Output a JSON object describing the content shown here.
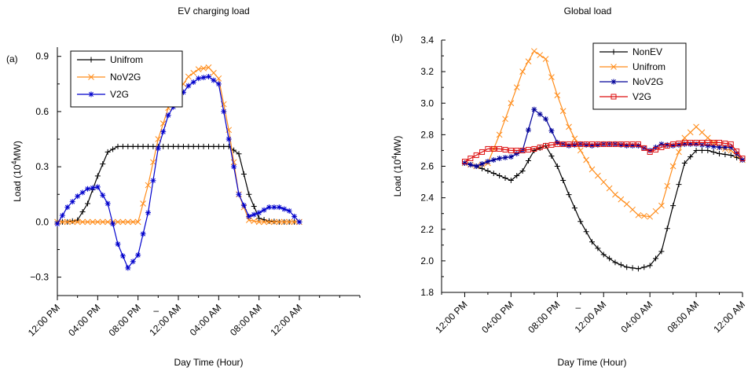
{
  "chart_data": [
    {
      "type": "line",
      "panel_label": "(a)",
      "title": "EV charging load",
      "xlabel": "Day Time (Hour)",
      "ylabel": "Load (10^4MW)",
      "ylabel_parts": [
        "Load (10",
        "4",
        "MW)"
      ],
      "ylim": [
        -0.4,
        0.95
      ],
      "yticks": [
        -0.3,
        0.0,
        0.3,
        0.6,
        0.9
      ],
      "ytick_labels": [
        "−0.3",
        "0.0",
        "0.3",
        "0.6",
        "0.9"
      ],
      "xlim": [
        12,
        42
      ],
      "xticks": [
        12,
        16,
        20,
        24,
        28,
        32,
        36
      ],
      "xtick_labels": [
        "12:00 PM",
        "04:00 PM",
        "08:00 PM",
        "12:00 AM",
        "04:00 AM",
        "08:00 AM",
        "12:00 AM"
      ],
      "stray_label": "–",
      "legend_position": "top-left",
      "series": [
        {
          "name": "Unifrom",
          "color": "#000000",
          "marker": "plus",
          "x": [
            12,
            13,
            14,
            15,
            16,
            17,
            18,
            19,
            20,
            21,
            22,
            23,
            24,
            25,
            26,
            27,
            28,
            29,
            30,
            31,
            32,
            33,
            34,
            35,
            36
          ],
          "y": [
            0,
            0,
            0.01,
            0.1,
            0.25,
            0.38,
            0.41,
            0.41,
            0.41,
            0.41,
            0.41,
            0.41,
            0.41,
            0.41,
            0.41,
            0.41,
            0.41,
            0.41,
            0.37,
            0.15,
            0.02,
            0.005,
            0,
            0,
            0
          ]
        },
        {
          "name": "NoV2G",
          "color": "#ff8c1a",
          "marker": "x",
          "x": [
            12,
            13,
            14,
            15,
            16,
            17,
            18,
            19,
            20,
            21,
            22,
            23,
            24,
            25,
            26,
            27,
            28,
            29,
            30,
            31,
            32,
            33,
            34,
            35,
            36
          ],
          "y": [
            0,
            0,
            0,
            0,
            0,
            0,
            0,
            0,
            0,
            0.2,
            0.45,
            0.62,
            0.71,
            0.79,
            0.83,
            0.84,
            0.78,
            0.5,
            0.15,
            0.01,
            0,
            0,
            0,
            0,
            0
          ]
        },
        {
          "name": "V2G",
          "color": "#0000cc",
          "marker": "star",
          "x": [
            12,
            13,
            14,
            15,
            16,
            17,
            18,
            19,
            20,
            21,
            22,
            23,
            24,
            25,
            26,
            27,
            28,
            29,
            30,
            31,
            32,
            33,
            34,
            35,
            36
          ],
          "y": [
            -0.01,
            0.08,
            0.14,
            0.18,
            0.19,
            0.1,
            -0.12,
            -0.25,
            -0.18,
            0.05,
            0.4,
            0.58,
            0.67,
            0.74,
            0.78,
            0.79,
            0.75,
            0.45,
            0.15,
            0.03,
            0.05,
            0.08,
            0.08,
            0.06,
            0
          ]
        }
      ]
    },
    {
      "type": "line",
      "panel_label": "(b)",
      "title": "Global load",
      "xlabel": "Day Time (Hour)",
      "ylabel": "Load (10^4MW)",
      "ylabel_parts": [
        "Load (10",
        "4",
        "MW)"
      ],
      "ylim": [
        1.8,
        3.4
      ],
      "yticks": [
        1.8,
        2.0,
        2.2,
        2.4,
        2.6,
        2.8,
        3.0,
        3.2,
        3.4
      ],
      "ytick_labels": [
        "1.8",
        "2.0",
        "2.2",
        "2.4",
        "2.6",
        "2.8",
        "3.0",
        "3.2",
        "3.4"
      ],
      "xlim": [
        10,
        36
      ],
      "xticks": [
        12,
        16,
        20,
        24,
        28,
        32,
        36
      ],
      "xtick_labels": [
        "12:00 PM",
        "04:00 PM",
        "08:00 PM",
        "12:00 AM",
        "04:00 AM",
        "08:00 AM",
        "12:00 AM"
      ],
      "stray_label": "–",
      "legend_position": "top-right",
      "series": [
        {
          "name": "NonEV",
          "color": "#000000",
          "marker": "plus",
          "x": [
            12,
            13,
            14,
            15,
            16,
            17,
            18,
            19,
            20,
            21,
            22,
            23,
            24,
            25,
            26,
            27,
            28,
            29,
            30,
            31,
            32,
            33,
            34,
            35,
            36
          ],
          "y": [
            2.62,
            2.6,
            2.57,
            2.54,
            2.51,
            2.57,
            2.7,
            2.73,
            2.6,
            2.42,
            2.25,
            2.12,
            2.04,
            1.99,
            1.96,
            1.95,
            1.97,
            2.06,
            2.35,
            2.62,
            2.7,
            2.7,
            2.68,
            2.67,
            2.64
          ]
        },
        {
          "name": "Unifrom",
          "color": "#ff8c1a",
          "marker": "x",
          "x": [
            12,
            13,
            14,
            15,
            16,
            17,
            18,
            19,
            20,
            21,
            22,
            23,
            24,
            25,
            26,
            27,
            28,
            29,
            30,
            31,
            32,
            33,
            34,
            35,
            36
          ],
          "y": [
            2.62,
            2.6,
            2.62,
            2.8,
            3.0,
            3.2,
            3.33,
            3.28,
            3.05,
            2.85,
            2.7,
            2.58,
            2.5,
            2.42,
            2.36,
            2.29,
            2.28,
            2.35,
            2.6,
            2.78,
            2.85,
            2.78,
            2.72,
            2.7,
            2.64
          ]
        },
        {
          "name": "NoV2G",
          "color": "#000099",
          "marker": "star",
          "x": [
            12,
            13,
            14,
            15,
            16,
            17,
            18,
            19,
            20,
            21,
            22,
            23,
            24,
            25,
            26,
            27,
            28,
            29,
            30,
            31,
            32,
            33,
            34,
            35,
            36
          ],
          "y": [
            2.62,
            2.6,
            2.63,
            2.65,
            2.66,
            2.7,
            2.96,
            2.9,
            2.75,
            2.73,
            2.74,
            2.73,
            2.74,
            2.74,
            2.73,
            2.73,
            2.7,
            2.74,
            2.73,
            2.74,
            2.74,
            2.73,
            2.72,
            2.72,
            2.64
          ]
        },
        {
          "name": "V2G",
          "color": "#dd1111",
          "marker": "square",
          "x": [
            12,
            13,
            14,
            15,
            16,
            17,
            18,
            19,
            20,
            21,
            22,
            23,
            24,
            25,
            26,
            27,
            28,
            29,
            30,
            31,
            32,
            33,
            34,
            35,
            36
          ],
          "y": [
            2.63,
            2.67,
            2.71,
            2.71,
            2.7,
            2.7,
            2.71,
            2.73,
            2.74,
            2.74,
            2.74,
            2.74,
            2.74,
            2.74,
            2.74,
            2.74,
            2.69,
            2.72,
            2.74,
            2.75,
            2.75,
            2.75,
            2.75,
            2.74,
            2.65
          ]
        }
      ]
    }
  ]
}
